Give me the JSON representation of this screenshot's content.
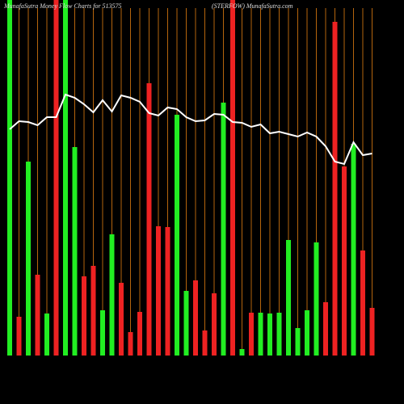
{
  "chart_data": {
    "type": "bar",
    "title": "MunafaSutra  Money Flow  Charts for 513575",
    "subtitle": "(STERFOW) MunafaSutra.com",
    "categories": [
      null,
      null,
      null,
      null,
      null,
      null,
      null,
      null,
      null,
      null,
      null,
      null,
      null,
      null,
      null,
      null,
      null,
      null,
      null,
      null,
      null,
      null,
      null,
      null,
      null,
      null,
      null,
      null,
      null,
      null,
      null,
      null,
      null,
      null,
      null,
      null,
      null,
      null,
      null,
      null
    ],
    "values": [
      440,
      48,
      240,
      100,
      52,
      440,
      440,
      258,
      98,
      111,
      56,
      150,
      90,
      29,
      54,
      337,
      160,
      159,
      298,
      80,
      93,
      31,
      77,
      313,
      440,
      8,
      53,
      53,
      52,
      53,
      143,
      34,
      56,
      140,
      66,
      413,
      234,
      262,
      130,
      59
    ],
    "colors": [
      "#22ee22",
      "#ee2222",
      "#22ee22",
      "#ee2222",
      "#22ee22",
      "#ee2222",
      "#22ee22",
      "#22ee22",
      "#ee2222",
      "#ee2222",
      "#22ee22",
      "#22ee22",
      "#ee2222",
      "#ee2222",
      "#ee2222",
      "#ee2222",
      "#ee2222",
      "#ee2222",
      "#22ee22",
      "#22ee22",
      "#ee2222",
      "#ee2222",
      "#ee2222",
      "#22ee22",
      "#ee2222",
      "#22ee22",
      "#ee2222",
      "#22ee22",
      "#22ee22",
      "#22ee22",
      "#22ee22",
      "#22ee22",
      "#22ee22",
      "#22ee22",
      "#ee2222",
      "#ee2222",
      "#ee2222",
      "#22ee22",
      "#ee2222",
      "#ee2222"
    ],
    "line_values": [
      280,
      290,
      289,
      285,
      295,
      295,
      323,
      319,
      311,
      301,
      316,
      302,
      322,
      319,
      314,
      300,
      297,
      307,
      305,
      295,
      290,
      291,
      299,
      298,
      289,
      288,
      283,
      286,
      275,
      277,
      274,
      271,
      276,
      271,
      259,
      240,
      237,
      264,
      248,
      250
    ],
    "line_color": "#ffffff",
    "ylim": [
      0,
      440
    ]
  }
}
